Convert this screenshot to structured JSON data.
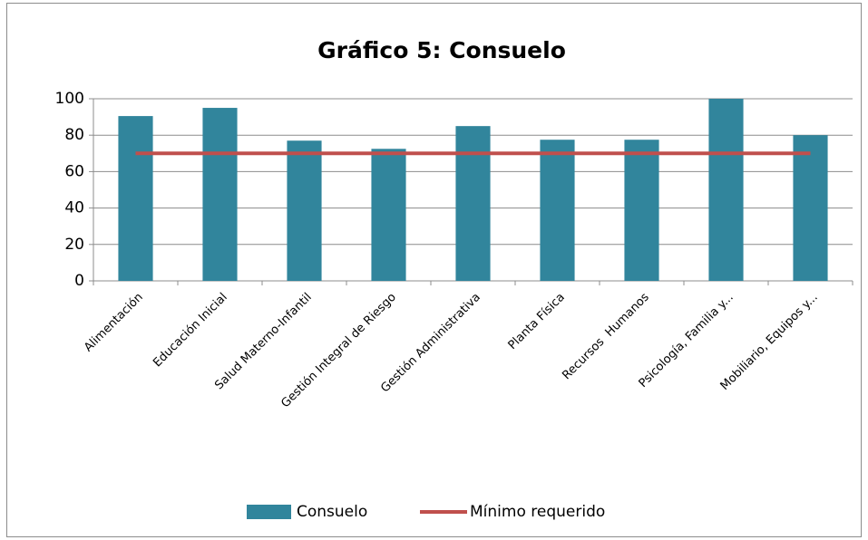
{
  "chart_data": {
    "type": "bar",
    "title": "Gráfico 5: Consuelo",
    "categories": [
      "Alimentación",
      "Educación Inicial",
      "Salud Materno-Infantil",
      "Gestión Integral de Riesgo",
      "Gestión Administrativa",
      "Planta Física",
      "Recursos  Humanos",
      "Psicología, Familia y...",
      "Mobiliario, Equipos y..."
    ],
    "series": [
      {
        "name": "Consuelo",
        "type": "bar",
        "color": "#31859c",
        "values": [
          90.5,
          95,
          77,
          72.5,
          85,
          77.5,
          77.5,
          100,
          80
        ]
      },
      {
        "name": "Mínimo requerido",
        "type": "line",
        "color": "#c0504d",
        "values": [
          70,
          70,
          70,
          70,
          70,
          70,
          70,
          70,
          70
        ]
      }
    ],
    "ylim": [
      0,
      100
    ],
    "yticks": [
      0,
      20,
      40,
      60,
      80,
      100
    ],
    "grid": true,
    "legend": "bottom"
  }
}
